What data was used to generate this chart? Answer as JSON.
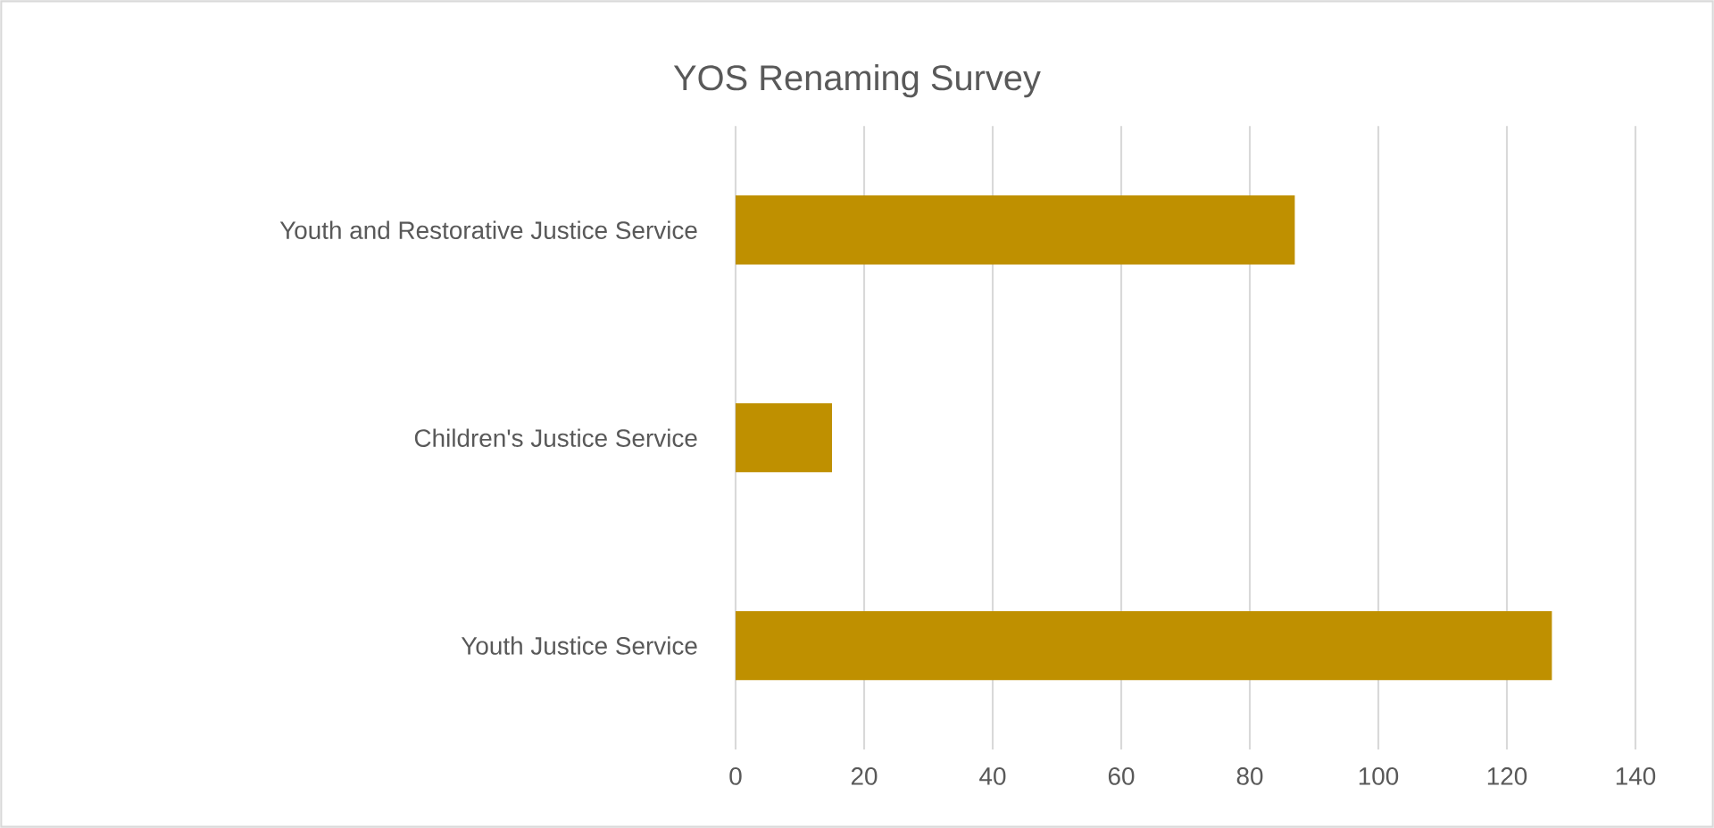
{
  "chart_data": {
    "type": "bar",
    "orientation": "horizontal",
    "title": "YOS Renaming Survey",
    "categories": [
      "Youth and Restorative Justice Service",
      "Children's Justice Service",
      "Youth Justice Service"
    ],
    "values": [
      87,
      15,
      127
    ],
    "color": "#bf9000",
    "xlim": [
      0,
      140
    ],
    "xticks": [
      0,
      20,
      40,
      60,
      80,
      100,
      120,
      140
    ],
    "grid": "x"
  }
}
